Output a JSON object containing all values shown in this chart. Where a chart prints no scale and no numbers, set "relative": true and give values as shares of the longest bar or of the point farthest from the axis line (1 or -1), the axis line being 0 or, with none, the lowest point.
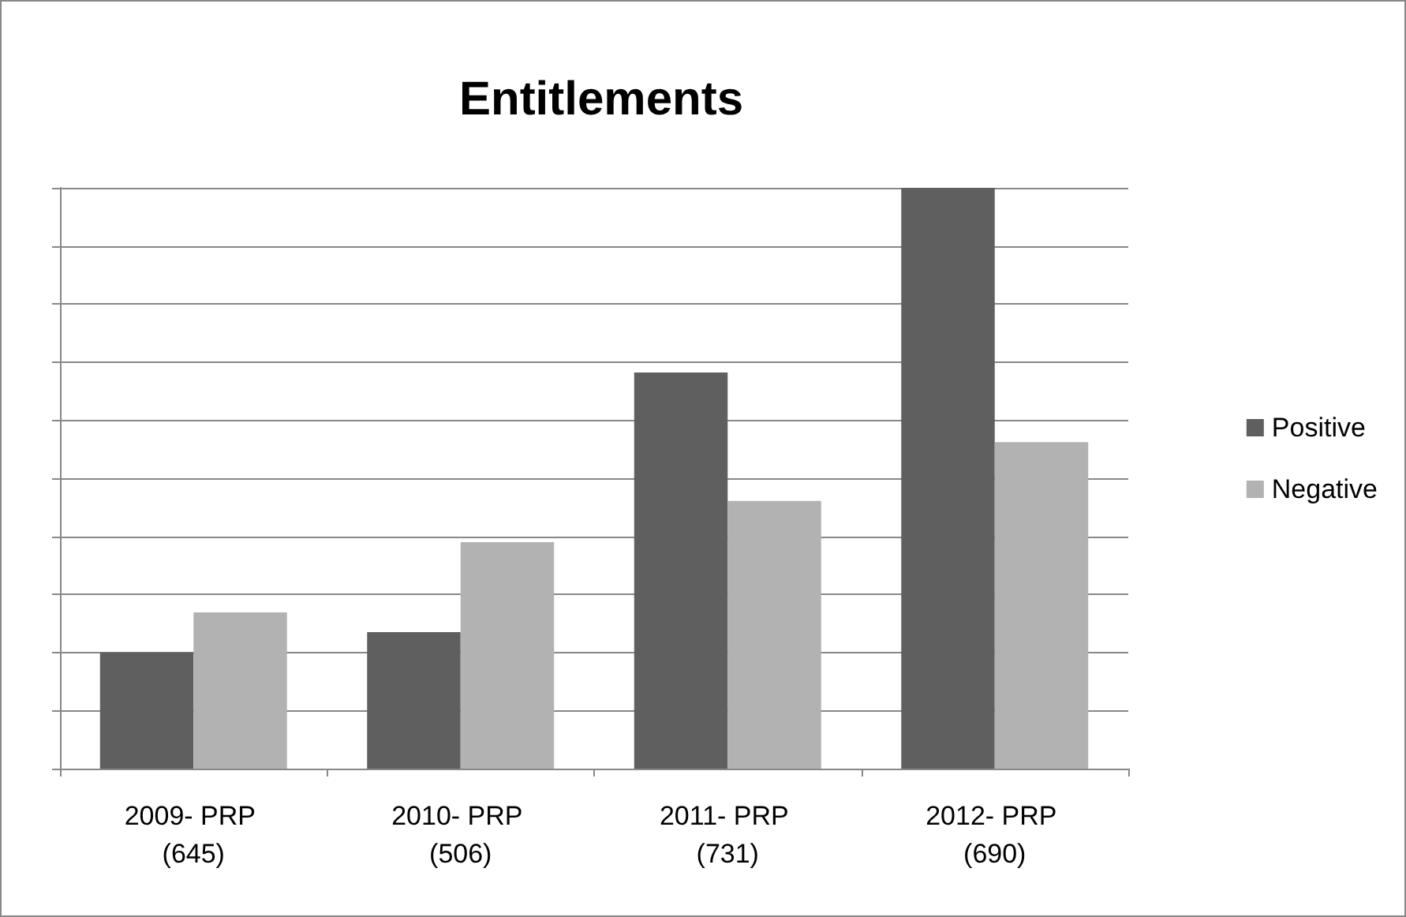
{
  "chart_data": {
    "type": "bar",
    "title": "Entitlements",
    "relative": true,
    "categories": [
      "2009- PRP (645)",
      "2010- PRP (506)",
      "2011- PRP (731)",
      "2012- PRP (690)"
    ],
    "series": [
      {
        "name": "Positive",
        "color": "#5f5f5f",
        "values": [
          0.2,
          0.235,
          0.682,
          1
        ]
      },
      {
        "name": "Negative",
        "color": "#b2b2b2",
        "values": [
          0.269,
          0.39,
          0.461,
          0.562
        ]
      }
    ],
    "grid": "y",
    "legend": "right"
  }
}
